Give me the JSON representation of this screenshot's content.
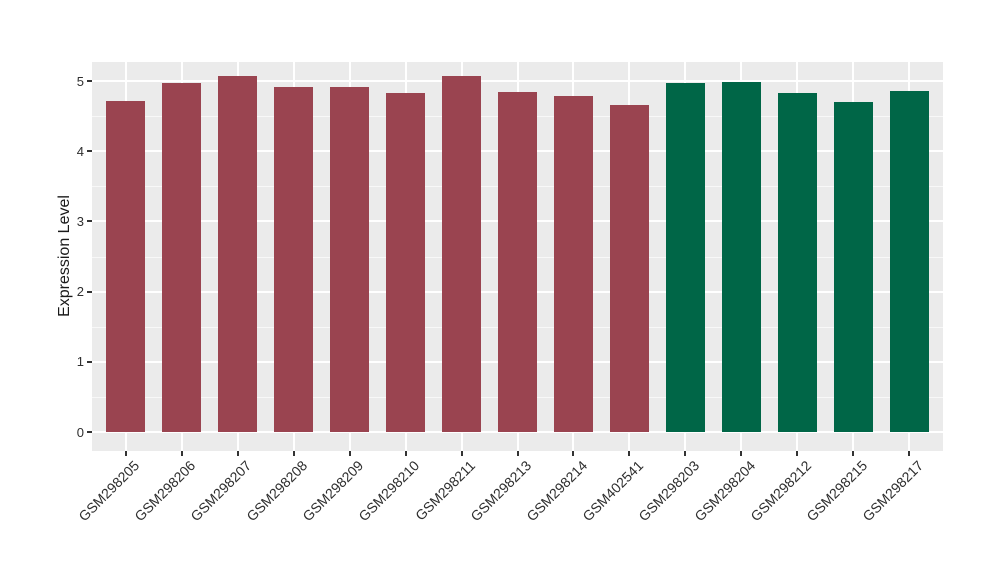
{
  "chart_data": {
    "type": "bar",
    "title": "",
    "xlabel": "",
    "ylabel": "Expression Level",
    "ylim": [
      0,
      5.27
    ],
    "yticks": [
      0,
      1,
      2,
      3,
      4,
      5
    ],
    "legend_position": "none",
    "grid": "white major/minor horizontal gridlines and white vertical gridlines at category centers on gray panel",
    "categories": [
      "GSM298205",
      "GSM298206",
      "GSM298207",
      "GSM298208",
      "GSM298209",
      "GSM298210",
      "GSM298211",
      "GSM298213",
      "GSM298214",
      "GSM402541",
      "GSM298203",
      "GSM298204",
      "GSM298212",
      "GSM298215",
      "GSM298217"
    ],
    "values": [
      4.71,
      4.97,
      5.07,
      4.92,
      4.92,
      4.83,
      5.07,
      4.85,
      4.79,
      4.66,
      4.97,
      4.99,
      4.83,
      4.7,
      4.86
    ],
    "groups": [
      "group1",
      "group1",
      "group1",
      "group1",
      "group1",
      "group1",
      "group1",
      "group1",
      "group1",
      "group1",
      "group2",
      "group2",
      "group2",
      "group2",
      "group2"
    ],
    "group_colors": {
      "group1": "#9A4450",
      "group2": "#006647"
    },
    "minor_yticks": [
      0.5,
      1.5,
      2.5,
      3.5,
      4.5
    ],
    "panel_background": "#EBEBEB",
    "gridline_color": "#FFFFFF",
    "tick_color": "#333333",
    "text_color": "#2e2e2e"
  }
}
